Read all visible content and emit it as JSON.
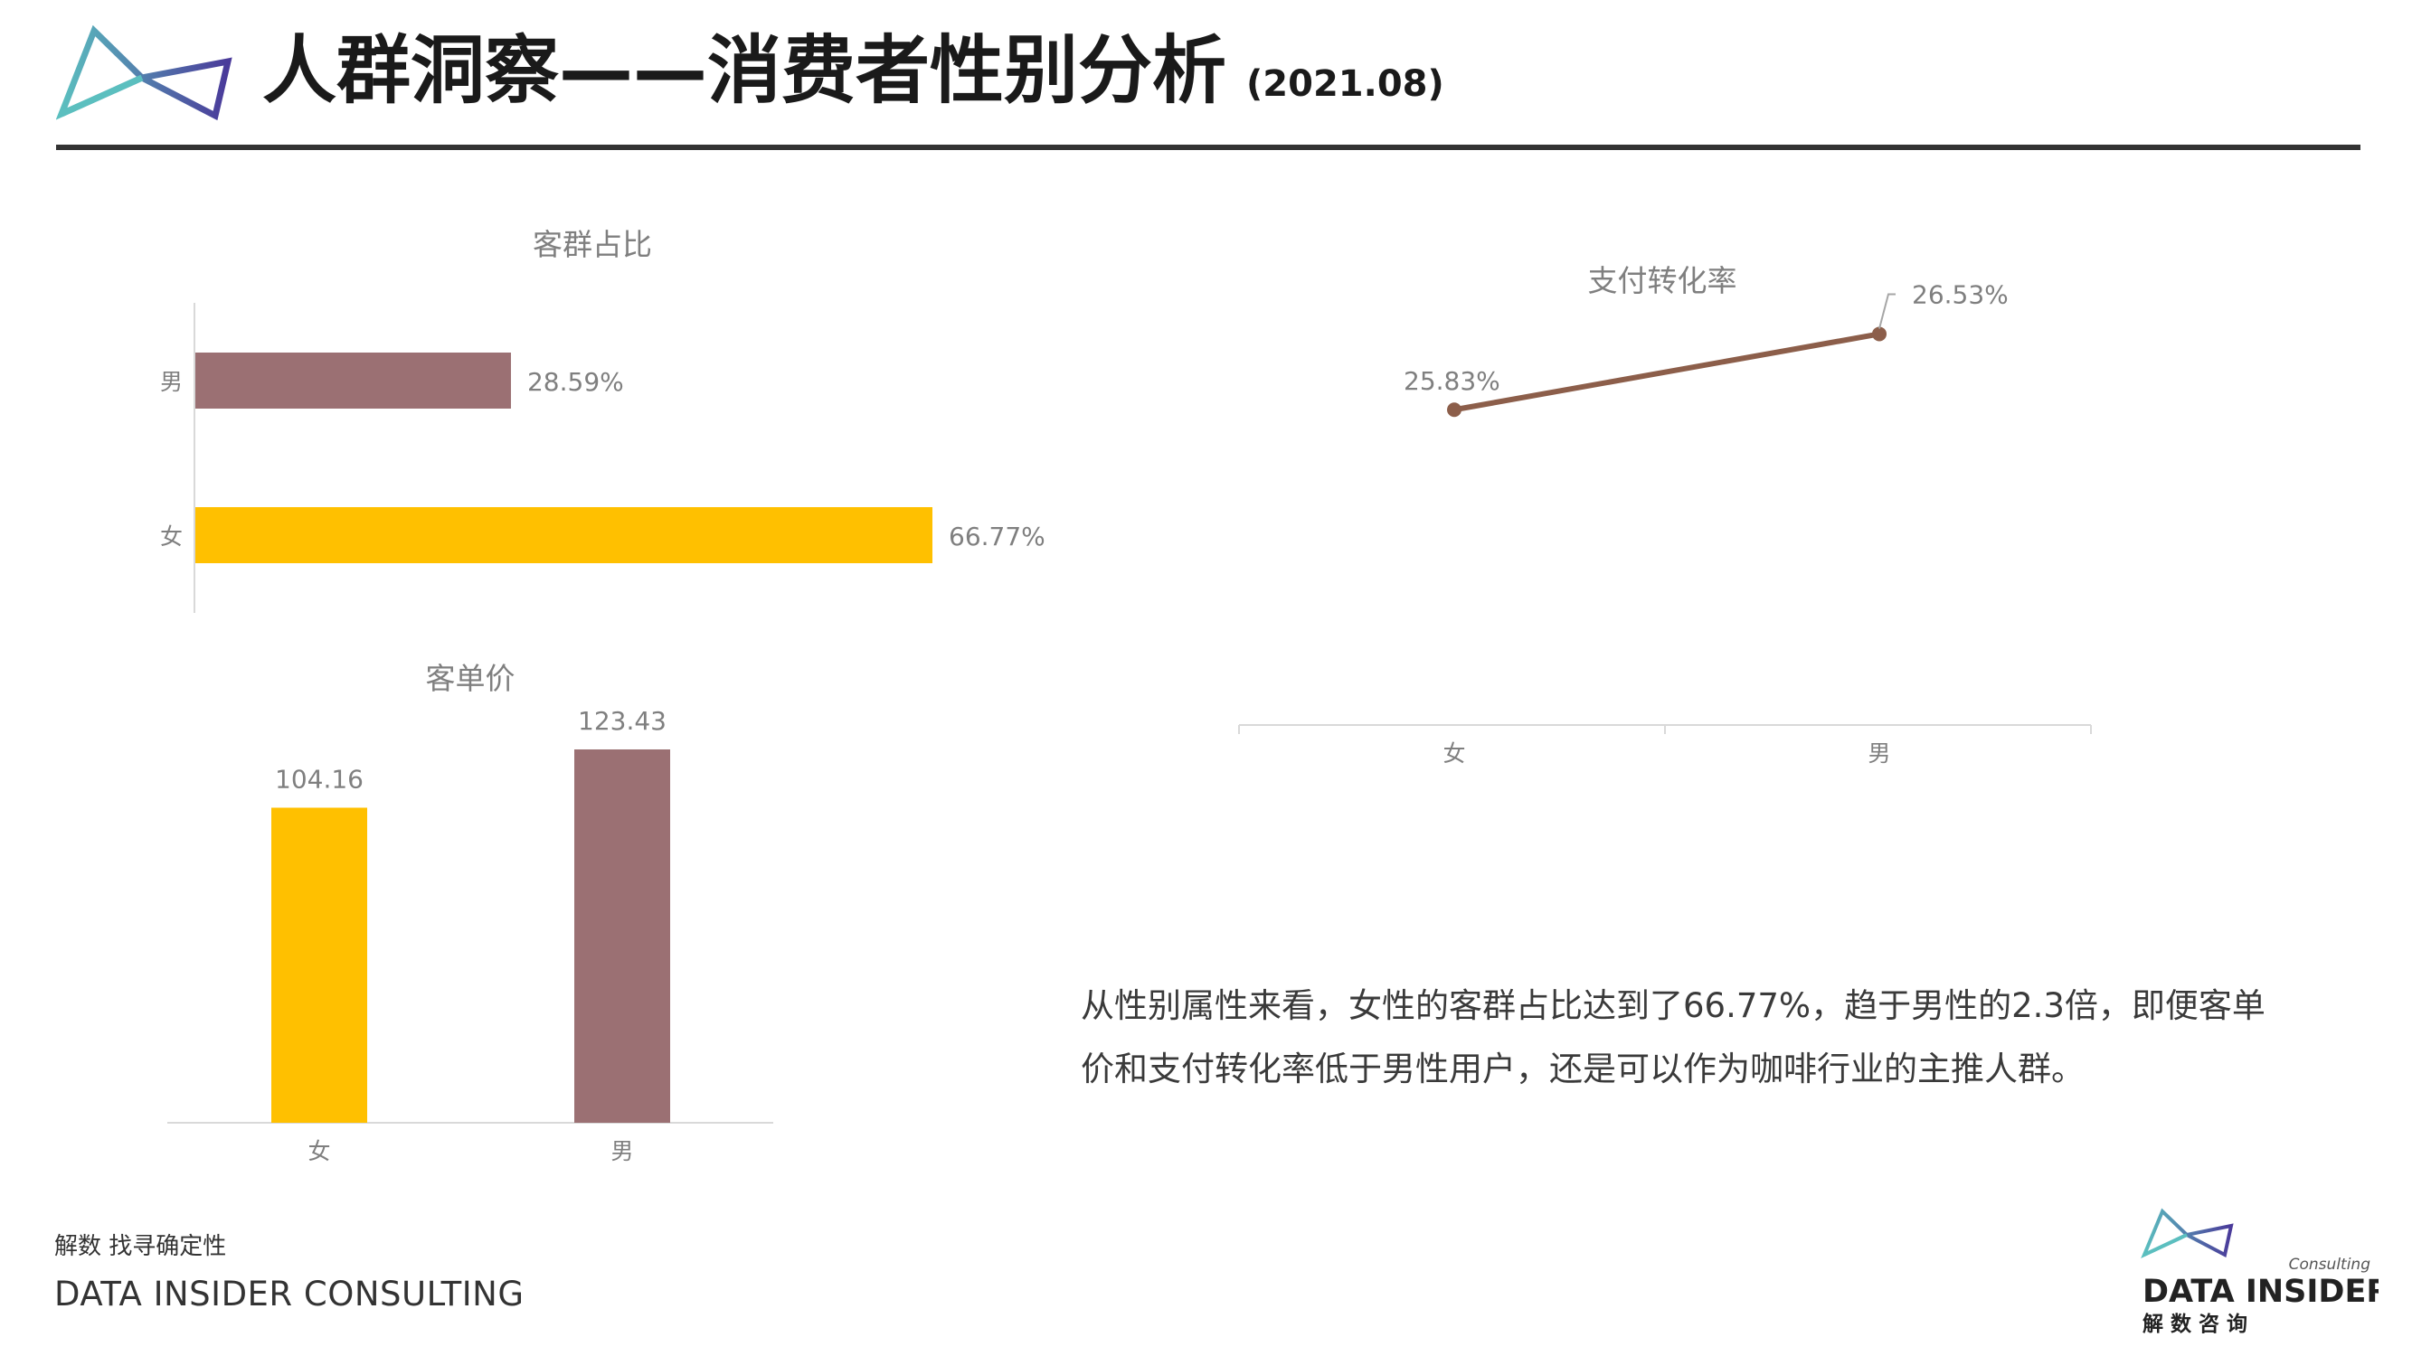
{
  "header": {
    "title": "人群洞察——消费者性别分析",
    "date": "(2021.08)"
  },
  "colors": {
    "female": "#FFC000",
    "male": "#9B7073",
    "line": "#8C5E4A",
    "axis": "#D9D9D9",
    "label": "#7F7F7F",
    "logo_teal": "#5BBFBF",
    "logo_purple": "#4A3A9A"
  },
  "chart_data": [
    {
      "id": "share",
      "type": "bar",
      "orientation": "horizontal",
      "title": "客群占比",
      "categories": [
        "男",
        "女"
      ],
      "values": [
        28.59,
        66.77
      ],
      "value_labels": [
        "28.59%",
        "66.77%"
      ],
      "unit": "%",
      "xlim": [
        0,
        100
      ]
    },
    {
      "id": "aov",
      "type": "bar",
      "orientation": "vertical",
      "title": "客单价",
      "categories": [
        "女",
        "男"
      ],
      "values": [
        104.16,
        123.43
      ],
      "value_labels": [
        "104.16",
        "123.43"
      ],
      "ylim": [
        0,
        130
      ]
    },
    {
      "id": "conversion",
      "type": "line",
      "title": "支付转化率",
      "categories": [
        "女",
        "男"
      ],
      "values": [
        25.83,
        26.53
      ],
      "value_labels": [
        "25.83%",
        "26.53%"
      ],
      "unit": "%",
      "ylim": [
        23.0,
        27.0
      ]
    }
  ],
  "summary": {
    "text": "从性别属性来看，女性的客群占比达到了66.77%，趋于男性的2.3倍，即便客单价和支付转化率低于男性用户，还是可以作为咖啡行业的主推人群。"
  },
  "footer": {
    "slogan_cn": "解数 找寻确定性",
    "company_en": "DATA INSIDER CONSULTING"
  },
  "brand": {
    "small": "Consulting",
    "name": "DATA INSIDER",
    "cn": "解 数 咨 询"
  }
}
